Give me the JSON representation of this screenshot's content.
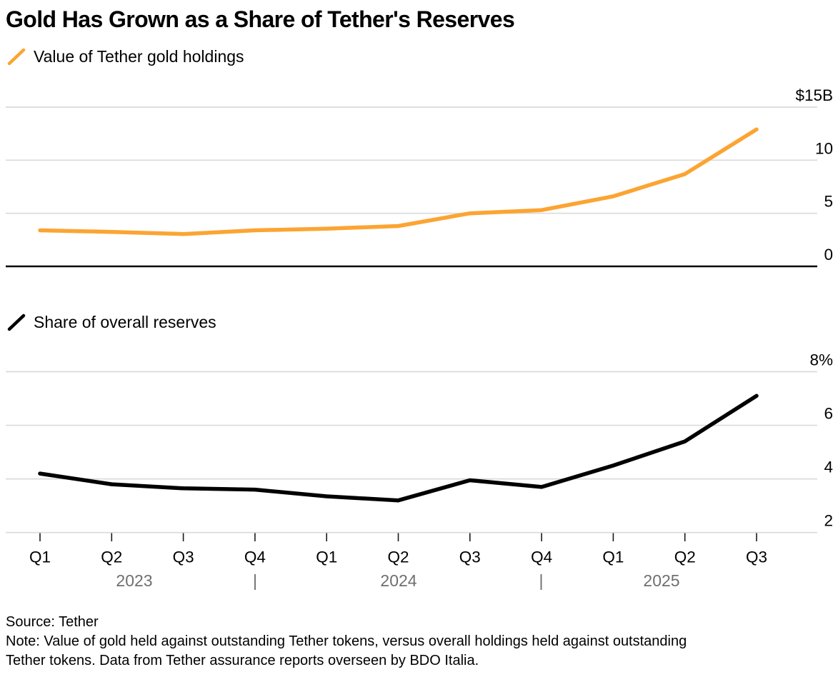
{
  "header": {
    "title": "Gold Has Grown as a Share of Tether's Reserves"
  },
  "colors": {
    "gold_line": "#FCA432",
    "share_line": "#000000",
    "gridline": "#DADADA",
    "zero_axis": "#000000",
    "axis_text": "#000000",
    "year_text": "#6F6F6F",
    "tick_mark": "#1A1A1A"
  },
  "chart_data": [
    {
      "type": "line",
      "id": "gold-holdings",
      "legend": "Value of Tether gold holdings",
      "color": "#FCA432",
      "unit": "$B",
      "x_categories": [
        "Q1",
        "Q2",
        "Q3",
        "Q4",
        "Q1",
        "Q2",
        "Q3",
        "Q4",
        "Q1",
        "Q2",
        "Q3"
      ],
      "values": [
        3.4,
        3.25,
        3.05,
        3.4,
        3.55,
        3.8,
        5.0,
        5.3,
        6.6,
        8.7,
        12.9
      ],
      "ylim": [
        0,
        15
      ],
      "y_ticks": [
        {
          "value": 15,
          "label": "$15B"
        },
        {
          "value": 10,
          "label": "10"
        },
        {
          "value": 5,
          "label": "5"
        },
        {
          "value": 0,
          "label": "0"
        }
      ],
      "zero_axis": true,
      "grid": true,
      "legend_position": "top-left"
    },
    {
      "type": "line",
      "id": "share-of-reserves",
      "legend": "Share of overall reserves",
      "color": "#000000",
      "unit": "%",
      "x_categories": [
        "Q1",
        "Q2",
        "Q3",
        "Q4",
        "Q1",
        "Q2",
        "Q3",
        "Q4",
        "Q1",
        "Q2",
        "Q3"
      ],
      "values": [
        4.2,
        3.8,
        3.65,
        3.6,
        3.35,
        3.2,
        3.95,
        3.7,
        4.5,
        5.4,
        7.1
      ],
      "ylim": [
        2,
        8
      ],
      "y_ticks": [
        {
          "value": 8,
          "label": "8%"
        },
        {
          "value": 6,
          "label": "6"
        },
        {
          "value": 4,
          "label": "4"
        },
        {
          "value": 2,
          "label": "2"
        }
      ],
      "zero_axis": false,
      "grid": true,
      "legend_position": "top-left"
    }
  ],
  "x_axis": {
    "quarters": [
      "Q1",
      "Q2",
      "Q3",
      "Q4",
      "Q1",
      "Q2",
      "Q3",
      "Q4",
      "Q1",
      "Q2",
      "Q3"
    ],
    "years": [
      "2023",
      "2024",
      "2025"
    ],
    "divider_glyph": "|"
  },
  "footer": {
    "source": "Source: Tether",
    "note_line1": "Note: Value of gold held against outstanding Tether tokens, versus overall holdings held against outstanding",
    "note_line2": "Tether tokens. Data from Tether assurance reports overseen by BDO Italia."
  }
}
